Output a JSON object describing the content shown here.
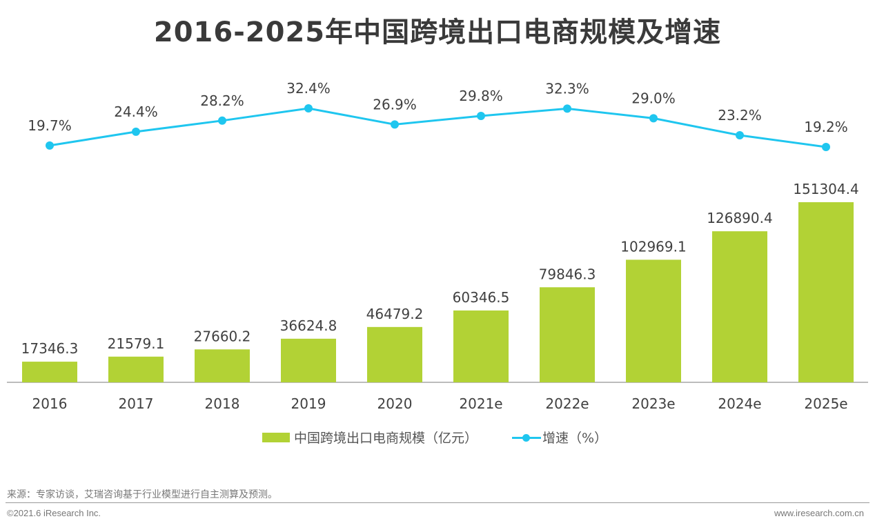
{
  "chart_data": {
    "type": "bar+line",
    "title": "2016-2025年中国跨境出口电商规模及增速",
    "categories": [
      "2016",
      "2017",
      "2018",
      "2019",
      "2020",
      "2021e",
      "2022e",
      "2023e",
      "2024e",
      "2025e"
    ],
    "series": [
      {
        "name": "中国跨境出口电商规模（亿元）",
        "type": "bar",
        "color": "#b2d235",
        "values": [
          17346.3,
          21579.1,
          27660.2,
          36624.8,
          46479.2,
          60346.5,
          79846.3,
          102969.1,
          126890.4,
          151304.4
        ],
        "labels": [
          "17346.3",
          "21579.1",
          "27660.2",
          "36624.8",
          "46479.2",
          "60346.5",
          "79846.3",
          "102969.1",
          "126890.4",
          "151304.4"
        ]
      },
      {
        "name": "增速（%）",
        "type": "line",
        "color": "#1fc6ef",
        "values": [
          19.7,
          24.4,
          28.2,
          32.4,
          26.9,
          29.8,
          32.3,
          29.0,
          23.2,
          19.2
        ],
        "labels": [
          "19.7%",
          "24.4%",
          "28.2%",
          "32.4%",
          "26.9%",
          "29.8%",
          "32.3%",
          "29.0%",
          "23.2%",
          "19.2%"
        ]
      }
    ],
    "legend": "bottom",
    "grid": false
  },
  "legend": {
    "bar": "中国跨境出口电商规模（亿元）",
    "line": "增速（%）"
  },
  "footer": {
    "source": "来源：专家访谈，艾瑞咨询基于行业模型进行自主测算及预测。",
    "copyright": "©2021.6 iResearch Inc.",
    "website": "www.iresearch.com.cn"
  }
}
